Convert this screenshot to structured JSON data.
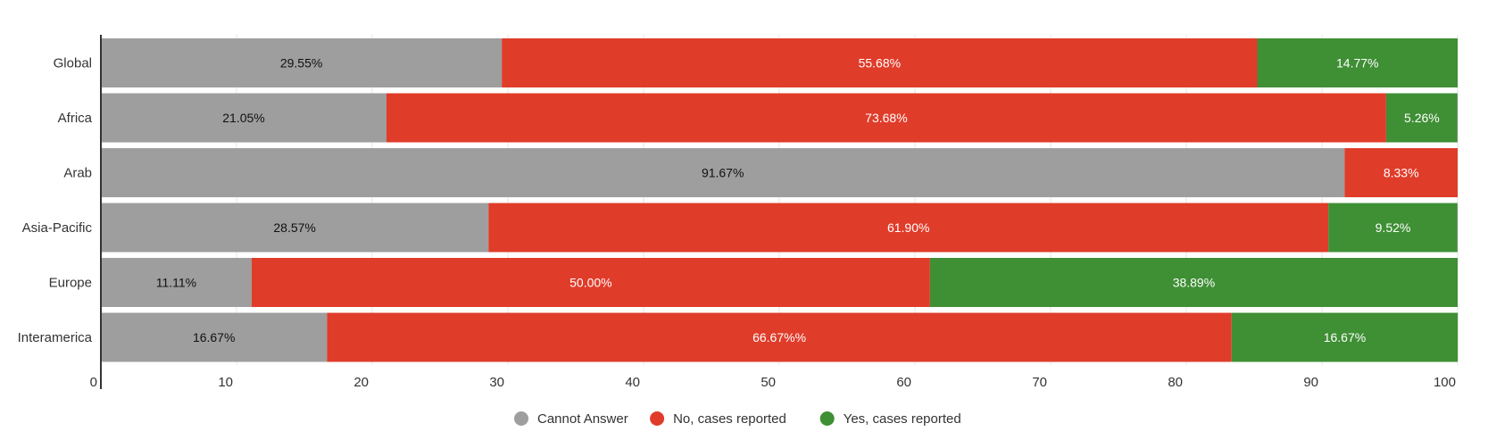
{
  "chart_data": {
    "type": "bar",
    "orientation": "horizontal",
    "stacked": true,
    "categories": [
      "Global",
      "Africa",
      "Arab",
      "Asia-Pacific",
      "Europe",
      "Interamerica"
    ],
    "series": [
      {
        "name": "Cannot Answer",
        "color": "#9e9e9e",
        "label_color": "#111111",
        "values": [
          29.55,
          21.05,
          91.67,
          28.57,
          11.11,
          16.67
        ],
        "labels": [
          "29.55%",
          "21.05%",
          "91.67%",
          "28.57%",
          "11.11%",
          "16.67%"
        ]
      },
      {
        "name": "No, cases reported",
        "color": "#e03c2a",
        "label_color": "#ffffff",
        "values": [
          55.68,
          73.68,
          8.33,
          61.9,
          50.0,
          66.67
        ],
        "labels": [
          "55.68%",
          "73.68%",
          "8.33%",
          "61.90%",
          "50.00%",
          "66.67%%"
        ]
      },
      {
        "name": "Yes, cases reported",
        "color": "#3f8f35",
        "label_color": "#ffffff",
        "values": [
          14.77,
          5.26,
          0,
          9.52,
          38.89,
          16.67
        ],
        "labels": [
          "14.77%",
          "5.26%",
          "",
          "9.52%",
          "38.89%",
          "16.67%"
        ]
      }
    ],
    "xlim": [
      0,
      100
    ],
    "xticks": [
      0,
      10,
      20,
      30,
      40,
      50,
      60,
      70,
      80,
      90,
      100
    ],
    "grid": true,
    "legend": "bottom-center"
  }
}
